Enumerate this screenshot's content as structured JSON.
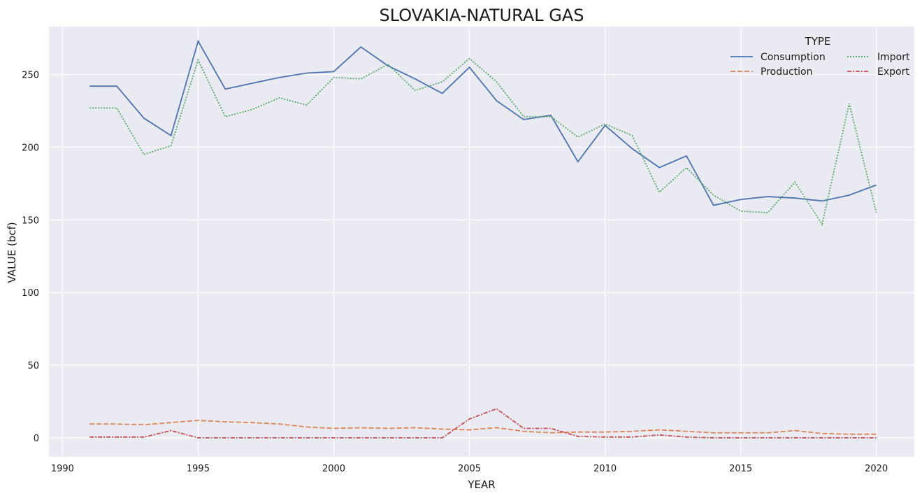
{
  "chart_data": {
    "type": "line",
    "title": "SLOVAKIA-NATURAL GAS",
    "xlabel": "YEAR",
    "ylabel": "VALUE (bcf)",
    "xlim": [
      1989.5,
      2021.4
    ],
    "ylim": [
      -13,
      283
    ],
    "xticks": [
      1990,
      1995,
      2000,
      2005,
      2010,
      2015,
      2020
    ],
    "yticks": [
      0,
      50,
      100,
      150,
      200,
      250
    ],
    "grid": true,
    "background": "#eaeaf2",
    "legend": {
      "title": "TYPE",
      "placement": "top-right",
      "columns": 2
    },
    "x": [
      1991,
      1992,
      1993,
      1994,
      1995,
      1996,
      1997,
      1998,
      1999,
      2000,
      2001,
      2002,
      2003,
      2004,
      2005,
      2006,
      2007,
      2008,
      2009,
      2010,
      2011,
      2012,
      2013,
      2014,
      2015,
      2016,
      2017,
      2018,
      2019,
      2020
    ],
    "series": [
      {
        "name": "Consumption",
        "color": "#4c72b0",
        "dash": "",
        "values": [
          242,
          242,
          220,
          208,
          273,
          240,
          244,
          248,
          251,
          252,
          269,
          256,
          247,
          237,
          255,
          232,
          219,
          222,
          190,
          215,
          199,
          186,
          194,
          160,
          164,
          166,
          165,
          163,
          167,
          174
        ]
      },
      {
        "name": "Production",
        "color": "#dd8452",
        "dash": "7,3",
        "values": [
          9.5,
          9.5,
          9,
          10.5,
          12,
          11,
          10.5,
          9.5,
          7.5,
          6.5,
          7,
          6.5,
          7,
          6,
          5.5,
          7,
          4.5,
          3.5,
          4,
          4,
          4.5,
          5.5,
          4.5,
          3.5,
          3.5,
          3.5,
          5,
          3,
          2.5,
          2.5
        ]
      },
      {
        "name": "Import",
        "color": "#55a868",
        "dash": "2,2",
        "values": [
          227,
          227,
          195,
          201,
          260,
          221,
          226,
          234,
          229,
          248,
          247,
          257,
          239,
          245,
          261,
          245,
          221,
          221,
          207,
          216,
          208,
          169,
          186,
          167,
          156,
          155,
          176,
          147,
          230,
          155
        ]
      },
      {
        "name": "Export",
        "color": "#c44e52",
        "dash": "6,2,2,2",
        "values": [
          0.5,
          0.5,
          0.5,
          5,
          0,
          0,
          0,
          0,
          0,
          0,
          0,
          0,
          0,
          0,
          13,
          20,
          6.5,
          6.5,
          1,
          0.5,
          0.5,
          2,
          0.5,
          0,
          0,
          0,
          0,
          0,
          0,
          0
        ]
      }
    ]
  }
}
